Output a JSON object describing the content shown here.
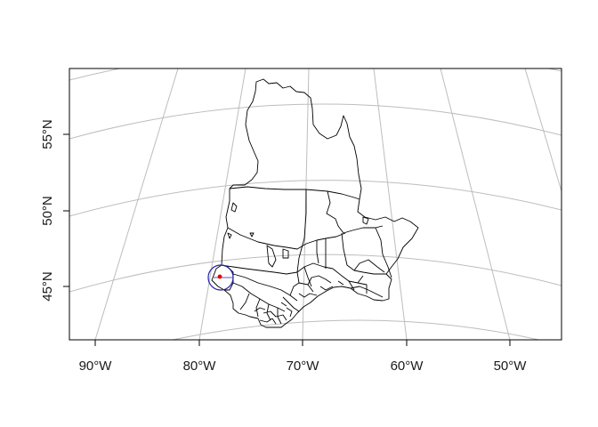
{
  "map": {
    "x_axis_labels": [
      "90°W",
      "80°W",
      "70°W",
      "60°W",
      "50°W"
    ],
    "y_axis_labels": [
      "55°N",
      "50°N",
      "45°N"
    ],
    "marker_color": "#e60000",
    "circle_color": "#2222aa",
    "outline_color": "#000000",
    "graticule_color": "#bdbdbd"
  }
}
